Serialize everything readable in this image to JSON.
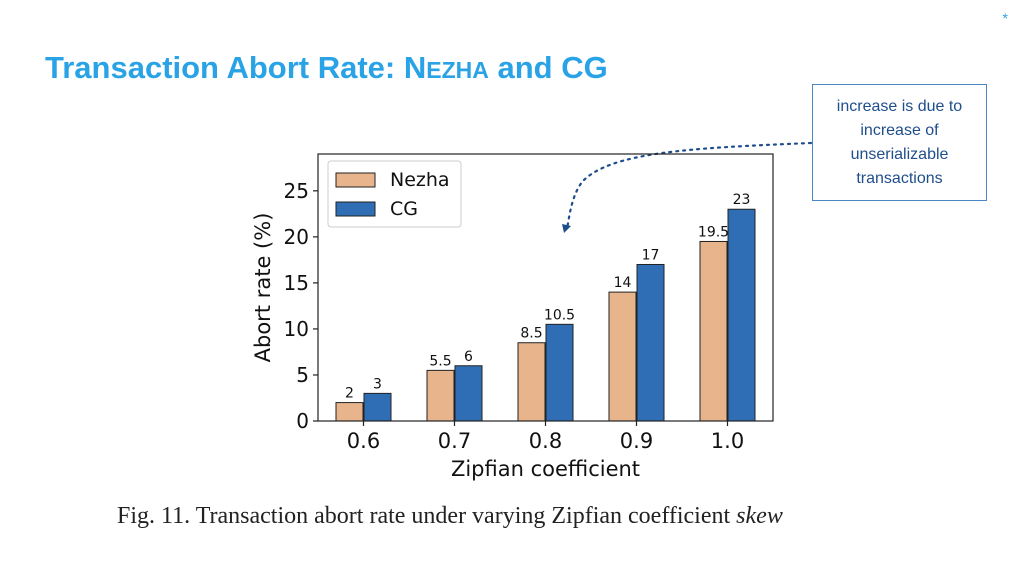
{
  "slide": {
    "title_prefix": "Transaction Abort Rate: N",
    "title_smallcaps": "EZHA",
    "title_suffix": " and CG",
    "corner_mark": "*"
  },
  "callout": {
    "lines": [
      "increase is due to",
      "increase of",
      "unserializable",
      "transactions"
    ]
  },
  "caption": {
    "text": "Fig. 11.  Transaction abort rate under varying Zipfian coefficient ",
    "variable": "skew"
  },
  "colors": {
    "title": "#2aa3e6",
    "nezha": "#e8b48c",
    "cg": "#2f6eb5",
    "arrow": "#1f4e8c"
  },
  "chart_data": {
    "type": "bar",
    "xlabel": "Zipfian coefficient",
    "ylabel": "Abort rate (%)",
    "categories": [
      "0.6",
      "0.7",
      "0.8",
      "0.9",
      "1.0"
    ],
    "ylim": [
      0,
      29
    ],
    "yticks": [
      0,
      5,
      10,
      15,
      20,
      25
    ],
    "grid": false,
    "legend_position": "top-left",
    "series": [
      {
        "name": "Nezha",
        "values": [
          2,
          5.5,
          8.5,
          14,
          19.5
        ],
        "labels": [
          "2",
          "5.5",
          "8.5",
          "14",
          "19.5"
        ]
      },
      {
        "name": "CG",
        "values": [
          3,
          6,
          10.5,
          17,
          23
        ],
        "labels": [
          "3",
          "6",
          "10.5",
          "17",
          "23"
        ]
      }
    ]
  }
}
